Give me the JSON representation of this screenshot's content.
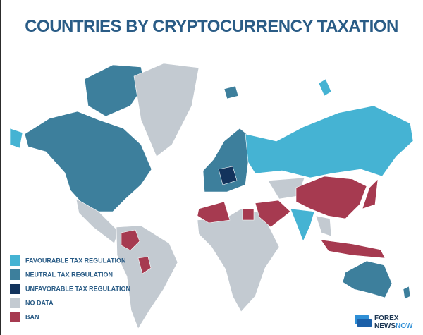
{
  "title": "COUNTRIES BY CRYPTOCURRENCY TAXATION",
  "legend": [
    {
      "label": "FAVOURABLE TAX REGULATION",
      "color": "#45b3d3"
    },
    {
      "label": "NEUTRAL TAX REGULATION",
      "color": "#3d7f9c"
    },
    {
      "label": "UNFAVORABLE TAX REGULATION",
      "color": "#13335c"
    },
    {
      "label": "NO DATA",
      "color": "#c3cad1"
    },
    {
      "label": "BAN",
      "color": "#a63a50"
    }
  ],
  "logo": {
    "line1": "FOREX",
    "line2": "NEWS",
    "line3": "NOW"
  }
}
